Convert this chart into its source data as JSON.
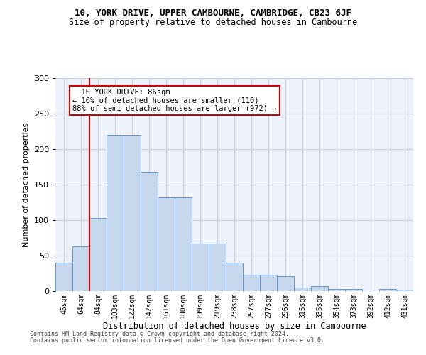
{
  "title1": "10, YORK DRIVE, UPPER CAMBOURNE, CAMBRIDGE, CB23 6JF",
  "title2": "Size of property relative to detached houses in Cambourne",
  "xlabel": "Distribution of detached houses by size in Cambourne",
  "ylabel": "Number of detached properties",
  "bar_labels": [
    "45sqm",
    "64sqm",
    "84sqm",
    "103sqm",
    "122sqm",
    "142sqm",
    "161sqm",
    "180sqm",
    "199sqm",
    "219sqm",
    "238sqm",
    "257sqm",
    "277sqm",
    "296sqm",
    "315sqm",
    "335sqm",
    "354sqm",
    "373sqm",
    "392sqm",
    "412sqm",
    "431sqm"
  ],
  "bar_values": [
    40,
    63,
    103,
    220,
    220,
    168,
    132,
    132,
    67,
    67,
    40,
    23,
    23,
    21,
    5,
    7,
    3,
    3,
    0,
    3,
    2
  ],
  "bar_color": "#c5d8ee",
  "bar_edgecolor": "#6496c8",
  "background_color": "#eef2fa",
  "grid_color": "#c8d0e0",
  "vline_color": "#cc0000",
  "annotation_text": "  10 YORK DRIVE: 86sqm\n← 10% of detached houses are smaller (110)\n88% of semi-detached houses are larger (972) →",
  "annotation_box_facecolor": "#ffffff",
  "annotation_box_edgecolor": "#cc0000",
  "ylim": [
    0,
    300
  ],
  "yticks": [
    0,
    50,
    100,
    150,
    200,
    250,
    300
  ],
  "footer1": "Contains HM Land Registry data © Crown copyright and database right 2024.",
  "footer2": "Contains public sector information licensed under the Open Government Licence v3.0."
}
